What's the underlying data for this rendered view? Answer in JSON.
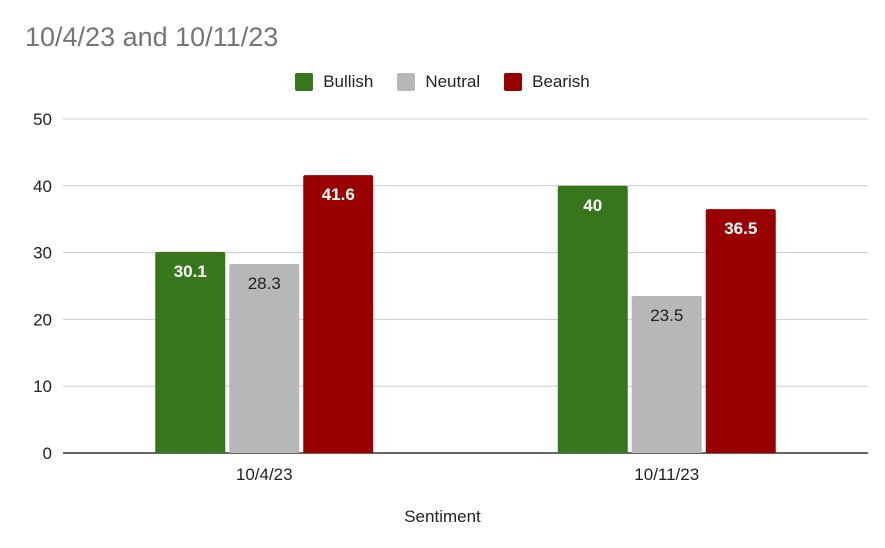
{
  "chart_data": {
    "type": "bar",
    "title": "10/4/23 and 10/11/23",
    "xlabel": "Sentiment",
    "ylabel": "",
    "categories": [
      "10/4/23",
      "10/11/23"
    ],
    "series": [
      {
        "name": "Bullish",
        "color": "#38761d",
        "label_color": "#ffffff",
        "values": [
          30.1,
          40
        ]
      },
      {
        "name": "Neutral",
        "color": "#b7b7b7",
        "label_color": "#222222",
        "values": [
          28.3,
          23.5
        ]
      },
      {
        "name": "Bearish",
        "color": "#990000",
        "label_color": "#ffffff",
        "values": [
          41.6,
          36.5
        ]
      }
    ],
    "ylim": [
      0,
      50
    ],
    "yticks": [
      0,
      10,
      20,
      30,
      40,
      50
    ],
    "grid": true,
    "legend_position": "top"
  }
}
